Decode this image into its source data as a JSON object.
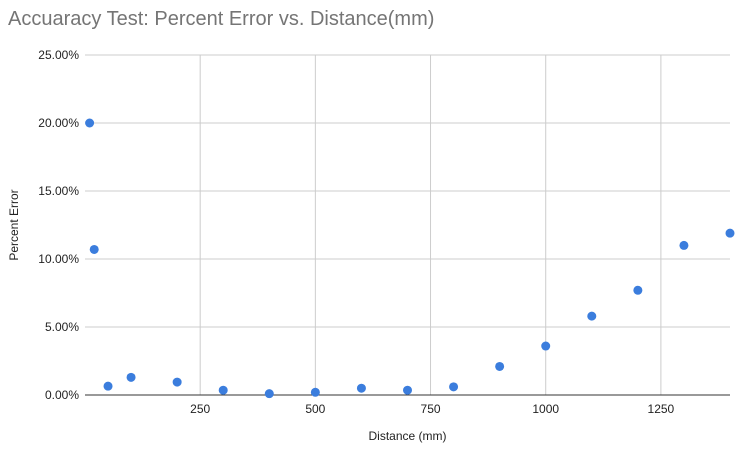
{
  "chart_data": {
    "type": "scatter",
    "title": "Accuaracy Test: Percent Error vs. Distance(mm)",
    "xlabel": "Distance (mm)",
    "ylabel": "Percent Error",
    "xlim": [
      0,
      1400
    ],
    "ylim": [
      0,
      25
    ],
    "x_ticks": [
      250,
      500,
      750,
      1000,
      1250
    ],
    "x_tick_labels": [
      "250",
      "500",
      "750",
      "1000",
      "1250"
    ],
    "y_ticks": [
      0,
      5,
      10,
      15,
      20,
      25
    ],
    "y_tick_labels": [
      "0.00%",
      "5.00%",
      "10.00%",
      "15.00%",
      "20.00%",
      "25.00%"
    ],
    "grid": true,
    "legend": "none",
    "color": "#3b7ddd",
    "x": [
      10,
      20,
      50,
      100,
      200,
      300,
      400,
      500,
      600,
      700,
      800,
      900,
      1000,
      1100,
      1200,
      1300,
      1400
    ],
    "y": [
      20.0,
      10.7,
      0.65,
      1.3,
      0.95,
      0.35,
      0.1,
      0.2,
      0.5,
      0.35,
      0.6,
      2.1,
      3.6,
      5.8,
      7.7,
      11.0,
      11.9
    ]
  }
}
